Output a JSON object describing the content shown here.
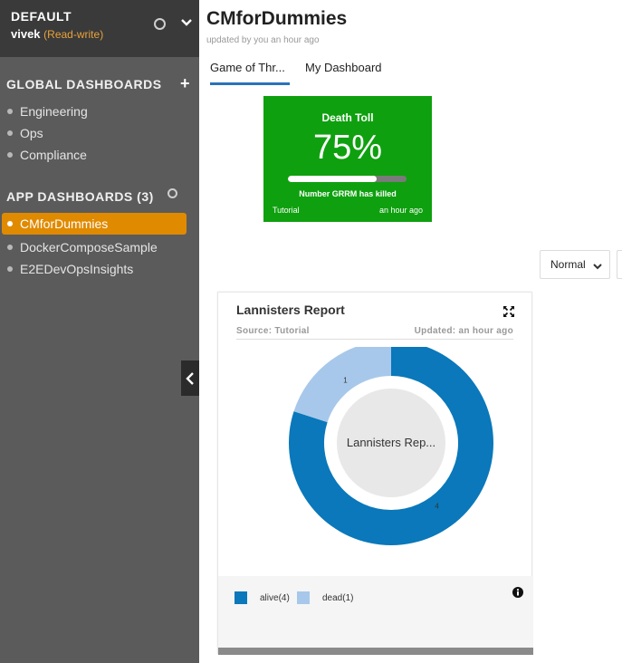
{
  "sidebar": {
    "workspace": "DEFAULT",
    "user": "vivek",
    "access": "(Read-write)",
    "global_section": "GLOBAL DASHBOARDS",
    "global_items": [
      "Engineering",
      "Ops",
      "Compliance"
    ],
    "app_section": "APP DASHBOARDS (3)",
    "app_items": [
      "CMforDummies",
      "DockerComposeSample",
      "E2EDevOpsInsights"
    ],
    "active_app_item": "CMforDummies"
  },
  "header": {
    "title": "CMforDummies",
    "subtitle": "updated by you an hour ago"
  },
  "tabs": [
    "Game of Thr...",
    "My Dashboard"
  ],
  "active_tab": "Game of Thr...",
  "death_toll": {
    "title": "Death Toll",
    "value": "75%",
    "progress": 0.75,
    "caption": "Number GRRM has killed",
    "source": "Tutorial",
    "updated": "an hour ago",
    "color": "#0fa00f"
  },
  "view_select": {
    "value": "Normal"
  },
  "report": {
    "title": "Lannisters Report",
    "source": "Source: Tutorial",
    "updated": "Updated: an hour ago",
    "center_label": "Lannisters Rep...",
    "legend": [
      {
        "label": "alive(4)",
        "color": "#0a78ba"
      },
      {
        "label": "dead(1)",
        "color": "#a7c8ea"
      }
    ]
  },
  "chart_data": {
    "type": "pie",
    "categories": [
      "alive",
      "dead"
    ],
    "values": [
      4,
      1
    ],
    "colors": [
      "#0a78ba",
      "#a7c8ea"
    ],
    "data_labels": [
      "4",
      "1"
    ],
    "center_label": "Lannisters Rep..."
  },
  "icons": {
    "workspace_status": "circle-icon",
    "workspace_menu": "chevron-down-icon",
    "add_global": "plus-icon",
    "app_status": "circle-icon",
    "collapse": "chevron-left-icon",
    "expand": "expand-icon",
    "info": "info-icon"
  }
}
